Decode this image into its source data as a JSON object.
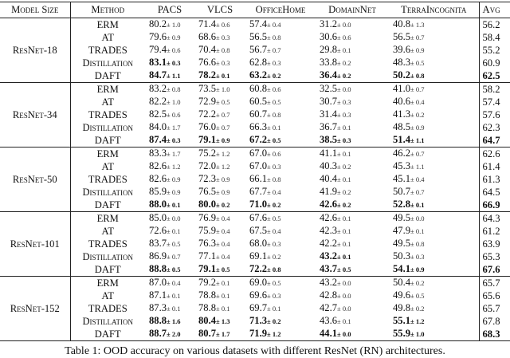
{
  "headers": [
    "Model Size",
    "Method",
    "PACS",
    "VLCS",
    "OfficeHome",
    "DomainNet",
    "TerraIncognita",
    "Avg"
  ],
  "groups": [
    {
      "model": "ResNet-18",
      "rows": [
        {
          "method": "ERM",
          "cells": [
            [
              "80.2",
              "1.0",
              0
            ],
            [
              "71.4",
              "0.6",
              0
            ],
            [
              "57.4",
              "0.4",
              0
            ],
            [
              "31.2",
              "0.0",
              0
            ],
            [
              "40.8",
              "1.3",
              0
            ]
          ],
          "avg": "56.2",
          "avg_bold": 0
        },
        {
          "method": "AT",
          "cells": [
            [
              "79.6",
              "0.9",
              0
            ],
            [
              "68.6",
              "0.3",
              0
            ],
            [
              "56.5",
              "0.8",
              0
            ],
            [
              "30.6",
              "0.6",
              0
            ],
            [
              "56.5",
              "0.7",
              0
            ]
          ],
          "avg": "58.4",
          "avg_bold": 0
        },
        {
          "method": "TRADES",
          "cells": [
            [
              "79.4",
              "0.6",
              0
            ],
            [
              "70.4",
              "0.8",
              0
            ],
            [
              "56.7",
              "0.7",
              0
            ],
            [
              "29.8",
              "0.1",
              0
            ],
            [
              "39.6",
              "0.9",
              0
            ]
          ],
          "avg": "55.2",
          "avg_bold": 0
        },
        {
          "method": "Distillation",
          "cells": [
            [
              "83.1",
              "0.3",
              1
            ],
            [
              "76.6",
              "0.3",
              0
            ],
            [
              "62.8",
              "0.3",
              0
            ],
            [
              "33.8",
              "0.2",
              0
            ],
            [
              "48.3",
              "0.5",
              0
            ]
          ],
          "avg": "60.9",
          "avg_bold": 0
        },
        {
          "method": "DAFT",
          "cells": [
            [
              "84.7",
              "1.1",
              1
            ],
            [
              "78.2",
              "0.1",
              1
            ],
            [
              "63.2",
              "0.2",
              1
            ],
            [
              "36.4",
              "0.2",
              1
            ],
            [
              "50.2",
              "0.8",
              1
            ]
          ],
          "avg": "62.5",
          "avg_bold": 1
        }
      ]
    },
    {
      "model": "ResNet-34",
      "rows": [
        {
          "method": "ERM",
          "cells": [
            [
              "83.2",
              "0.8",
              0
            ],
            [
              "73.5",
              "1.0",
              0
            ],
            [
              "60.8",
              "0.6",
              0
            ],
            [
              "32.5",
              "0.0",
              0
            ],
            [
              "41.0",
              "0.7",
              0
            ]
          ],
          "avg": "58.2",
          "avg_bold": 0
        },
        {
          "method": "AT",
          "cells": [
            [
              "82.2",
              "1.0",
              0
            ],
            [
              "72.9",
              "0.5",
              0
            ],
            [
              "60.5",
              "0.5",
              0
            ],
            [
              "30.7",
              "0.3",
              0
            ],
            [
              "40.6",
              "0.4",
              0
            ]
          ],
          "avg": "57.4",
          "avg_bold": 0
        },
        {
          "method": "TRADES",
          "cells": [
            [
              "82.5",
              "0.6",
              0
            ],
            [
              "72.2",
              "0.7",
              0
            ],
            [
              "60.7",
              "0.8",
              0
            ],
            [
              "31.4",
              "0.3",
              0
            ],
            [
              "41.3",
              "0.2",
              0
            ]
          ],
          "avg": "57.6",
          "avg_bold": 0
        },
        {
          "method": "Distillation",
          "cells": [
            [
              "84.0",
              "1.7",
              0
            ],
            [
              "76.0",
              "0.7",
              0
            ],
            [
              "66.3",
              "0.1",
              0
            ],
            [
              "36.7",
              "0.1",
              0
            ],
            [
              "48.5",
              "0.9",
              0
            ]
          ],
          "avg": "62.3",
          "avg_bold": 0
        },
        {
          "method": "DAFT",
          "cells": [
            [
              "87.4",
              "0.3",
              1
            ],
            [
              "79.1",
              "0.9",
              1
            ],
            [
              "67.2",
              "0.5",
              1
            ],
            [
              "38.5",
              "0.3",
              1
            ],
            [
              "51.4",
              "1.1",
              1
            ]
          ],
          "avg": "64.7",
          "avg_bold": 1
        }
      ]
    },
    {
      "model": "ResNet-50",
      "rows": [
        {
          "method": "ERM",
          "cells": [
            [
              "83.3",
              "1.7",
              0
            ],
            [
              "75.2",
              "1.2",
              0
            ],
            [
              "67.0",
              "0.6",
              0
            ],
            [
              "41.1",
              "0.1",
              0
            ],
            [
              "46.2",
              "0.7",
              0
            ]
          ],
          "avg": "62.6",
          "avg_bold": 0
        },
        {
          "method": "AT",
          "cells": [
            [
              "82.6",
              "1.2",
              0
            ],
            [
              "72.0",
              "1.2",
              0
            ],
            [
              "67.0",
              "0.3",
              0
            ],
            [
              "40.3",
              "0.2",
              0
            ],
            [
              "45.3",
              "1.1",
              0
            ]
          ],
          "avg": "61.4",
          "avg_bold": 0
        },
        {
          "method": "TRADES",
          "cells": [
            [
              "82.6",
              "0.9",
              0
            ],
            [
              "72.3",
              "0.9",
              0
            ],
            [
              "66.1",
              "0.8",
              0
            ],
            [
              "40.4",
              "0.1",
              0
            ],
            [
              "45.1",
              "0.4",
              0
            ]
          ],
          "avg": "61.3",
          "avg_bold": 0
        },
        {
          "method": "Distillation",
          "cells": [
            [
              "85.9",
              "0.9",
              0
            ],
            [
              "76.5",
              "0.9",
              0
            ],
            [
              "67.7",
              "0.4",
              0
            ],
            [
              "41.9",
              "0.2",
              0
            ],
            [
              "50.7",
              "0.7",
              0
            ]
          ],
          "avg": "64.5",
          "avg_bold": 0
        },
        {
          "method": "DAFT",
          "cells": [
            [
              "88.0",
              "0.1",
              1
            ],
            [
              "80.0",
              "0.2",
              1
            ],
            [
              "71.0",
              "0.2",
              1
            ],
            [
              "42.6",
              "0.2",
              1
            ],
            [
              "52.8",
              "0.1",
              1
            ]
          ],
          "avg": "66.9",
          "avg_bold": 1
        }
      ]
    },
    {
      "model": "ResNet-101",
      "rows": [
        {
          "method": "ERM",
          "cells": [
            [
              "85.0",
              "0.0",
              0
            ],
            [
              "76.9",
              "0.4",
              0
            ],
            [
              "67.6",
              "0.5",
              0
            ],
            [
              "42.6",
              "0.1",
              0
            ],
            [
              "49.5",
              "0.0",
              0
            ]
          ],
          "avg": "64.3",
          "avg_bold": 0
        },
        {
          "method": "AT",
          "cells": [
            [
              "72.6",
              "0.1",
              0
            ],
            [
              "75.9",
              "0.4",
              0
            ],
            [
              "67.5",
              "0.4",
              0
            ],
            [
              "42.3",
              "0.1",
              0
            ],
            [
              "47.9",
              "0.1",
              0
            ]
          ],
          "avg": "61.2",
          "avg_bold": 0
        },
        {
          "method": "TRADES",
          "cells": [
            [
              "83.7",
              "0.5",
              0
            ],
            [
              "76.3",
              "0.4",
              0
            ],
            [
              "68.0",
              "0.3",
              0
            ],
            [
              "42.2",
              "0.1",
              0
            ],
            [
              "49.5",
              "0.8",
              0
            ]
          ],
          "avg": "63.9",
          "avg_bold": 0
        },
        {
          "method": "Distillation",
          "cells": [
            [
              "86.9",
              "0.7",
              0
            ],
            [
              "77.1",
              "0.4",
              0
            ],
            [
              "69.1",
              "0.2",
              0
            ],
            [
              "43.2",
              "0.1",
              1
            ],
            [
              "50.3",
              "0.3",
              0
            ]
          ],
          "avg": "65.3",
          "avg_bold": 0
        },
        {
          "method": "DAFT",
          "cells": [
            [
              "88.8",
              "0.5",
              1
            ],
            [
              "79.1",
              "0.5",
              1
            ],
            [
              "72.2",
              "0.8",
              1
            ],
            [
              "43.7",
              "0.5",
              1
            ],
            [
              "54.1",
              "0.9",
              1
            ]
          ],
          "avg": "67.6",
          "avg_bold": 1
        }
      ]
    },
    {
      "model": "ResNet-152",
      "rows": [
        {
          "method": "ERM",
          "cells": [
            [
              "87.0",
              "0.4",
              0
            ],
            [
              "79.2",
              "0.1",
              0
            ],
            [
              "69.0",
              "0.5",
              0
            ],
            [
              "43.2",
              "0.0",
              0
            ],
            [
              "50.4",
              "0.2",
              0
            ]
          ],
          "avg": "65.7",
          "avg_bold": 0
        },
        {
          "method": "AT",
          "cells": [
            [
              "87.1",
              "0.1",
              0
            ],
            [
              "78.8",
              "0.1",
              0
            ],
            [
              "69.6",
              "0.3",
              0
            ],
            [
              "42.8",
              "0.0",
              0
            ],
            [
              "49.6",
              "0.5",
              0
            ]
          ],
          "avg": "65.6",
          "avg_bold": 0
        },
        {
          "method": "TRADES",
          "cells": [
            [
              "87.3",
              "0.1",
              0
            ],
            [
              "78.8",
              "0.1",
              0
            ],
            [
              "69.7",
              "0.1",
              0
            ],
            [
              "42.7",
              "0.0",
              0
            ],
            [
              "49.8",
              "0.2",
              0
            ]
          ],
          "avg": "65.7",
          "avg_bold": 0
        },
        {
          "method": "Distillation",
          "cells": [
            [
              "88.8",
              "1.6",
              1
            ],
            [
              "80.4",
              "1.3",
              1
            ],
            [
              "71.3",
              "0.2",
              1
            ],
            [
              "43.6",
              "0.1",
              0
            ],
            [
              "55.1",
              "1.2",
              1
            ]
          ],
          "avg": "67.8",
          "avg_bold": 0
        },
        {
          "method": "DAFT",
          "cells": [
            [
              "88.7",
              "2.0",
              1
            ],
            [
              "80.7",
              "1.7",
              1
            ],
            [
              "71.9",
              "1.2",
              1
            ],
            [
              "44.1",
              "0.0",
              1
            ],
            [
              "55.9",
              "1.0",
              1
            ]
          ],
          "avg": "68.3",
          "avg_bold": 1
        }
      ]
    }
  ],
  "caption": "Table 1: OOD accuracy on various datasets with different ResNet (RN) architectures."
}
